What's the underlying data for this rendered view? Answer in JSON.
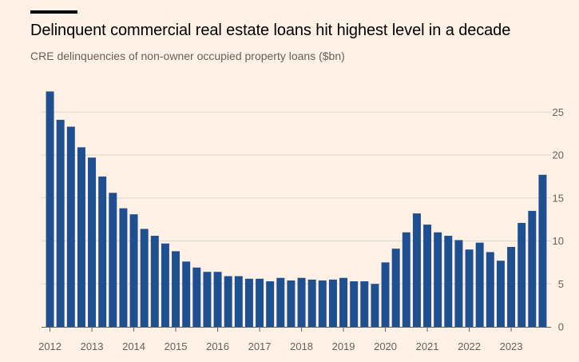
{
  "header": {
    "title": "Delinquent commercial real estate loans hit highest level in a decade",
    "subtitle": "CRE delinquencies of non-owner occupied property loans ($bn)"
  },
  "colors": {
    "background": "#fff1e5",
    "bar": "#1d4f91",
    "grid": "#e2d6cc",
    "axis_text": "#66605c",
    "baseline": "#66605c"
  },
  "chart_data": {
    "type": "bar",
    "title": "Delinquent commercial real estate loans hit highest level in a decade",
    "subtitle": "CRE delinquencies of non-owner occupied property loans ($bn)",
    "xlabel": "",
    "ylabel": "",
    "ylim": [
      0,
      27
    ],
    "yticks": [
      0,
      5,
      10,
      15,
      20,
      25
    ],
    "y_axis_side": "right",
    "grid": true,
    "x_tick_labels": [
      "2012",
      "2013",
      "2014",
      "2015",
      "2016",
      "2017",
      "2018",
      "2019",
      "2020",
      "2021",
      "2022",
      "2023"
    ],
    "categories": [
      "2012 Q1",
      "2012 Q2",
      "2012 Q3",
      "2012 Q4",
      "2013 Q1",
      "2013 Q2",
      "2013 Q3",
      "2013 Q4",
      "2014 Q1",
      "2014 Q2",
      "2014 Q3",
      "2014 Q4",
      "2015 Q1",
      "2015 Q2",
      "2015 Q3",
      "2015 Q4",
      "2016 Q1",
      "2016 Q2",
      "2016 Q3",
      "2016 Q4",
      "2017 Q1",
      "2017 Q2",
      "2017 Q3",
      "2017 Q4",
      "2018 Q1",
      "2018 Q2",
      "2018 Q3",
      "2018 Q4",
      "2019 Q1",
      "2019 Q2",
      "2019 Q3",
      "2019 Q4",
      "2020 Q1",
      "2020 Q2",
      "2020 Q3",
      "2020 Q4",
      "2021 Q1",
      "2021 Q2",
      "2021 Q3",
      "2021 Q4",
      "2022 Q1",
      "2022 Q2",
      "2022 Q3",
      "2022 Q4",
      "2023 Q1",
      "2023 Q2",
      "2023 Q3",
      "2023 Q4"
    ],
    "values": [
      27.4,
      24.1,
      23.3,
      20.9,
      19.7,
      17.5,
      15.6,
      13.8,
      13.1,
      11.4,
      10.6,
      9.7,
      8.8,
      7.6,
      6.9,
      6.4,
      6.4,
      5.9,
      5.9,
      5.6,
      5.6,
      5.3,
      5.7,
      5.4,
      5.7,
      5.5,
      5.4,
      5.5,
      5.7,
      5.3,
      5.3,
      5.0,
      7.5,
      9.1,
      11.0,
      13.2,
      11.9,
      11.0,
      10.6,
      10.1,
      9.0,
      9.8,
      8.7,
      7.7,
      9.3,
      12.1,
      13.5,
      17.7
    ]
  }
}
